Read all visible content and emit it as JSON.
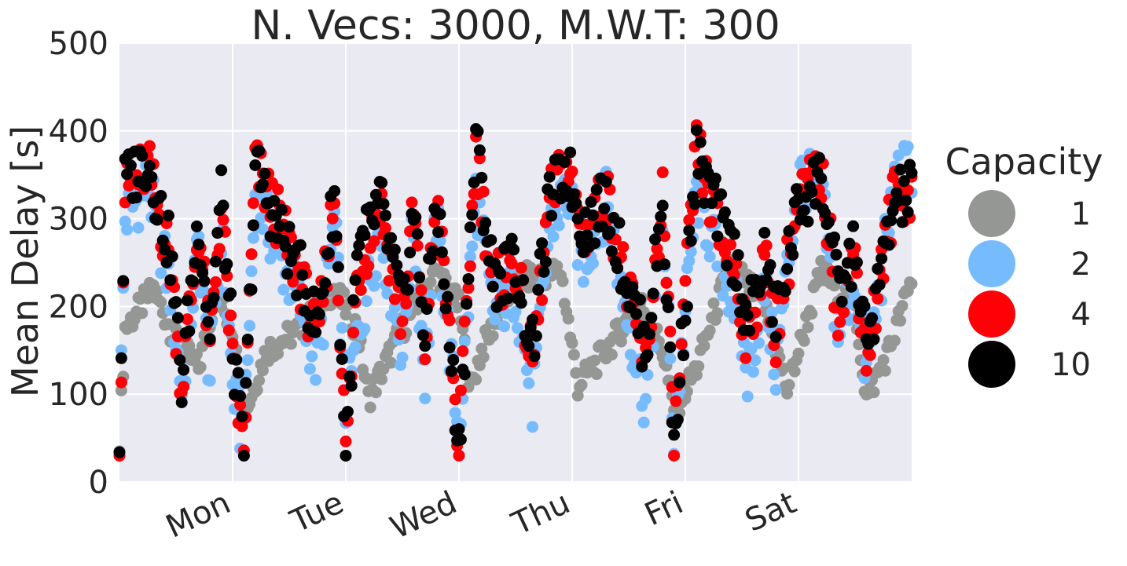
{
  "chart_data": {
    "type": "scatter",
    "title": "N. Vecs: 3000, M.W.T: 300",
    "xlabel": "",
    "ylabel": "Mean Delay [s]",
    "ylim": [
      0,
      500
    ],
    "yticks": [
      0,
      100,
      200,
      300,
      400,
      500
    ],
    "xlim_days": [
      0,
      7
    ],
    "x_ticks": [
      {
        "day": 1,
        "label": "Mon"
      },
      {
        "day": 2,
        "label": "Tue"
      },
      {
        "day": 3,
        "label": "Wed"
      },
      {
        "day": 4,
        "label": "Thu"
      },
      {
        "day": 5,
        "label": "Fri"
      },
      {
        "day": 6,
        "label": "Sat"
      }
    ],
    "grid": true,
    "background": "#eaeaf2",
    "legend": {
      "title": "Capacity",
      "placement": "right outside"
    },
    "series": [
      {
        "name": "1",
        "color": "#959795",
        "profile": [
          [
            0,
            50
          ],
          [
            0.05,
            175
          ],
          [
            0.3,
            220
          ],
          [
            0.5,
            160
          ],
          [
            0.7,
            130
          ],
          [
            0.85,
            215
          ],
          [
            1.0,
            175
          ],
          [
            1.1,
            75
          ],
          [
            1.3,
            150
          ],
          [
            1.6,
            175
          ],
          [
            1.9,
            220
          ],
          [
            2.1,
            175
          ],
          [
            2.2,
            95
          ],
          [
            2.5,
            175
          ],
          [
            2.8,
            240
          ],
          [
            3.0,
            200
          ],
          [
            3.1,
            105
          ],
          [
            3.2,
            150
          ],
          [
            3.5,
            230
          ],
          [
            3.9,
            240
          ],
          [
            4.05,
            110
          ],
          [
            4.3,
            150
          ],
          [
            4.6,
            205
          ],
          [
            4.8,
            150
          ],
          [
            4.9,
            80
          ],
          [
            5.1,
            130
          ],
          [
            5.4,
            250
          ],
          [
            5.7,
            200
          ],
          [
            5.9,
            105
          ],
          [
            6.2,
            240
          ],
          [
            6.5,
            200
          ],
          [
            6.6,
            95
          ],
          [
            6.8,
            150
          ],
          [
            7.0,
            230
          ]
        ]
      },
      {
        "name": "2",
        "color": "#77bbff",
        "profile": [
          [
            0,
            50
          ],
          [
            0.05,
            300
          ],
          [
            0.25,
            340
          ],
          [
            0.45,
            220
          ],
          [
            0.55,
            105
          ],
          [
            0.7,
            270
          ],
          [
            0.8,
            120
          ],
          [
            0.9,
            290
          ],
          [
            1.0,
            110
          ],
          [
            1.1,
            40
          ],
          [
            1.2,
            330
          ],
          [
            1.4,
            260
          ],
          [
            1.6,
            200
          ],
          [
            1.75,
            130
          ],
          [
            1.9,
            300
          ],
          [
            2.0,
            80
          ],
          [
            2.1,
            160
          ],
          [
            2.3,
            290
          ],
          [
            2.5,
            150
          ],
          [
            2.6,
            290
          ],
          [
            2.7,
            120
          ],
          [
            2.8,
            300
          ],
          [
            3.0,
            50
          ],
          [
            3.15,
            330
          ],
          [
            3.3,
            190
          ],
          [
            3.5,
            220
          ],
          [
            3.65,
            90
          ],
          [
            3.8,
            290
          ],
          [
            3.95,
            330
          ],
          [
            4.1,
            250
          ],
          [
            4.3,
            320
          ],
          [
            4.5,
            180
          ],
          [
            4.65,
            90
          ],
          [
            4.8,
            300
          ],
          [
            4.9,
            50
          ],
          [
            5.1,
            330
          ],
          [
            5.3,
            250
          ],
          [
            5.45,
            200
          ],
          [
            5.55,
            120
          ],
          [
            5.7,
            220
          ],
          [
            5.8,
            130
          ],
          [
            6.0,
            350
          ],
          [
            6.2,
            330
          ],
          [
            6.35,
            170
          ],
          [
            6.5,
            230
          ],
          [
            6.6,
            120
          ],
          [
            6.85,
            340
          ],
          [
            7.0,
            360
          ]
        ]
      },
      {
        "name": "4",
        "color": "#ff0007",
        "profile": [
          [
            0,
            50
          ],
          [
            0.05,
            330
          ],
          [
            0.25,
            360
          ],
          [
            0.45,
            250
          ],
          [
            0.55,
            110
          ],
          [
            0.7,
            290
          ],
          [
            0.8,
            150
          ],
          [
            0.9,
            320
          ],
          [
            1.0,
            130
          ],
          [
            1.1,
            35
          ],
          [
            1.2,
            360
          ],
          [
            1.4,
            300
          ],
          [
            1.6,
            230
          ],
          [
            1.75,
            160
          ],
          [
            1.9,
            330
          ],
          [
            2.0,
            35
          ],
          [
            2.1,
            230
          ],
          [
            2.3,
            320
          ],
          [
            2.5,
            180
          ],
          [
            2.6,
            310
          ],
          [
            2.7,
            150
          ],
          [
            2.8,
            330
          ],
          [
            3.0,
            40
          ],
          [
            3.15,
            380
          ],
          [
            3.3,
            220
          ],
          [
            3.5,
            250
          ],
          [
            3.65,
            130
          ],
          [
            3.8,
            320
          ],
          [
            3.95,
            360
          ],
          [
            4.1,
            280
          ],
          [
            4.3,
            330
          ],
          [
            4.5,
            210
          ],
          [
            4.65,
            130
          ],
          [
            4.8,
            330
          ],
          [
            4.9,
            40
          ],
          [
            5.1,
            380
          ],
          [
            5.3,
            280
          ],
          [
            5.45,
            240
          ],
          [
            5.55,
            160
          ],
          [
            5.7,
            250
          ],
          [
            5.8,
            170
          ],
          [
            6.0,
            320
          ],
          [
            6.2,
            350
          ],
          [
            6.35,
            200
          ],
          [
            6.5,
            260
          ],
          [
            6.6,
            140
          ],
          [
            6.85,
            330
          ],
          [
            7.0,
            330
          ]
        ]
      },
      {
        "name": "10",
        "color": "#000000",
        "profile": [
          [
            0,
            50
          ],
          [
            0.05,
            340
          ],
          [
            0.25,
            370
          ],
          [
            0.45,
            260
          ],
          [
            0.55,
            115
          ],
          [
            0.7,
            300
          ],
          [
            0.8,
            170
          ],
          [
            0.9,
            330
          ],
          [
            1.0,
            150
          ],
          [
            1.1,
            35
          ],
          [
            1.2,
            360
          ],
          [
            1.4,
            290
          ],
          [
            1.6,
            235
          ],
          [
            1.75,
            175
          ],
          [
            1.9,
            330
          ],
          [
            2.0,
            35
          ],
          [
            2.1,
            250
          ],
          [
            2.3,
            320
          ],
          [
            2.5,
            195
          ],
          [
            2.6,
            310
          ],
          [
            2.7,
            165
          ],
          [
            2.8,
            330
          ],
          [
            3.0,
            40
          ],
          [
            3.15,
            390
          ],
          [
            3.3,
            230
          ],
          [
            3.5,
            250
          ],
          [
            3.65,
            150
          ],
          [
            3.8,
            320
          ],
          [
            3.95,
            360
          ],
          [
            4.1,
            290
          ],
          [
            4.3,
            320
          ],
          [
            4.5,
            220
          ],
          [
            4.65,
            150
          ],
          [
            4.8,
            320
          ],
          [
            4.9,
            40
          ],
          [
            5.1,
            370
          ],
          [
            5.3,
            300
          ],
          [
            5.45,
            250
          ],
          [
            5.55,
            180
          ],
          [
            5.7,
            255
          ],
          [
            5.8,
            185
          ],
          [
            6.0,
            315
          ],
          [
            6.2,
            350
          ],
          [
            6.35,
            215
          ],
          [
            6.5,
            265
          ],
          [
            6.6,
            150
          ],
          [
            6.85,
            320
          ],
          [
            7.0,
            330
          ]
        ]
      }
    ]
  }
}
